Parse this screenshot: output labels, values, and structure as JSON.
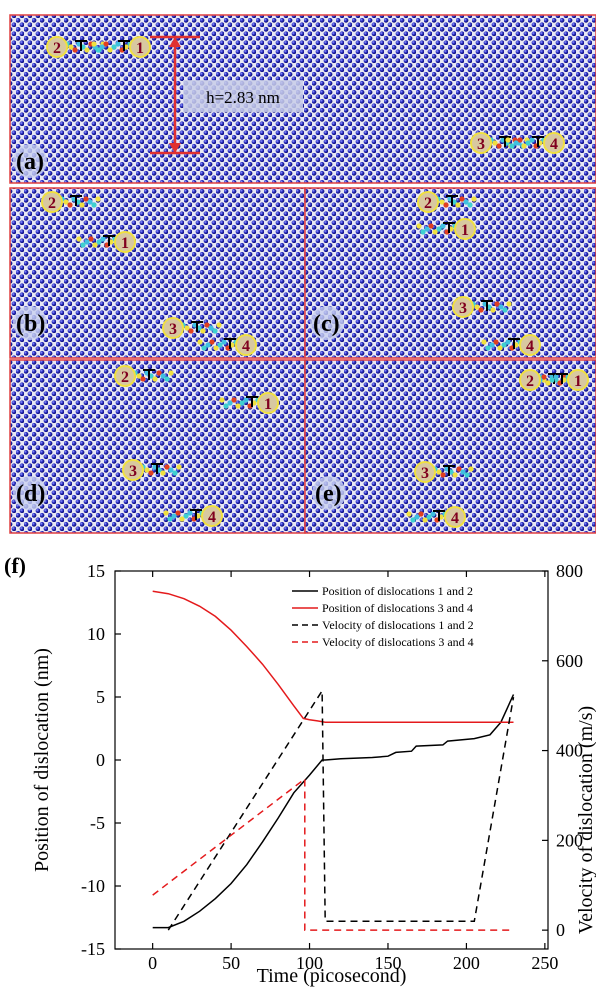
{
  "figure_panels": [
    {
      "label": "(a)",
      "annotation": "h=2.83 nm",
      "markers": [
        "2",
        "1",
        "3",
        "4"
      ]
    },
    {
      "label": "(b)",
      "markers": [
        "2",
        "1",
        "3",
        "4"
      ]
    },
    {
      "label": "(c)",
      "markers": [
        "2",
        "1",
        "3",
        "4"
      ]
    },
    {
      "label": "(d)",
      "markers": [
        "2",
        "1",
        "3",
        "4"
      ]
    },
    {
      "label": "(e)",
      "markers": [
        "2",
        "1",
        "3",
        "4"
      ]
    }
  ],
  "chart_data": {
    "type": "line",
    "panel_label": "(f)",
    "x_label": "Time (picosecond)",
    "y_label": "Position of dislocation (nm)",
    "y2_label": "Velocity of dislocation (m/s)",
    "xlim": [
      -24,
      252
    ],
    "xticks": [
      0,
      50,
      100,
      150,
      200,
      250
    ],
    "ylim": [
      -15,
      15
    ],
    "yticks": [
      -15,
      -10,
      -5,
      0,
      5,
      10,
      15
    ],
    "y2lim": [
      -42,
      800
    ],
    "y2ticks": [
      0,
      200,
      400,
      600,
      800
    ],
    "legend": "upper right",
    "series": [
      {
        "name": "Position of dislocations 1 and 2",
        "color": "#000000",
        "linestyle": "solid",
        "x": [
          0,
          10,
          20,
          30,
          40,
          50,
          60,
          70,
          80,
          90,
          100,
          108,
          110,
          120,
          140,
          150,
          155,
          165,
          168,
          185,
          188,
          205,
          215,
          222,
          230
        ],
        "values": [
          -13.3,
          -13.3,
          -12.8,
          -12,
          -11,
          -9.8,
          -8.3,
          -6.5,
          -4.6,
          -2.6,
          -1.2,
          0,
          0,
          0.1,
          0.2,
          0.3,
          0.6,
          0.7,
          1.1,
          1.2,
          1.5,
          1.7,
          2,
          3,
          5.2
        ]
      },
      {
        "name": "Position of dislocations 3 and 4",
        "color": "#e41a1c",
        "linestyle": "solid",
        "x": [
          0,
          10,
          20,
          30,
          40,
          50,
          60,
          70,
          80,
          90,
          96,
          100,
          105,
          110,
          230
        ],
        "values": [
          13.4,
          13.2,
          12.8,
          12.2,
          11.4,
          10.3,
          9,
          7.6,
          6,
          4.3,
          3.3,
          3.2,
          3.1,
          3,
          3
        ]
      },
      {
        "name": "Velocity of dislocations 1 and 2",
        "color": "#000000",
        "linestyle": "dashed",
        "axis": "y2",
        "x": [
          10,
          108,
          110,
          205,
          230
        ],
        "values": [
          0,
          533,
          20,
          20,
          519
        ]
      },
      {
        "name": "Velocity of dislocations 3 and 4",
        "color": "#e41a1c",
        "linestyle": "dashed",
        "axis": "y2",
        "x": [
          0,
          97,
          97,
          230
        ],
        "values": [
          78,
          337,
          0,
          0
        ]
      }
    ]
  }
}
